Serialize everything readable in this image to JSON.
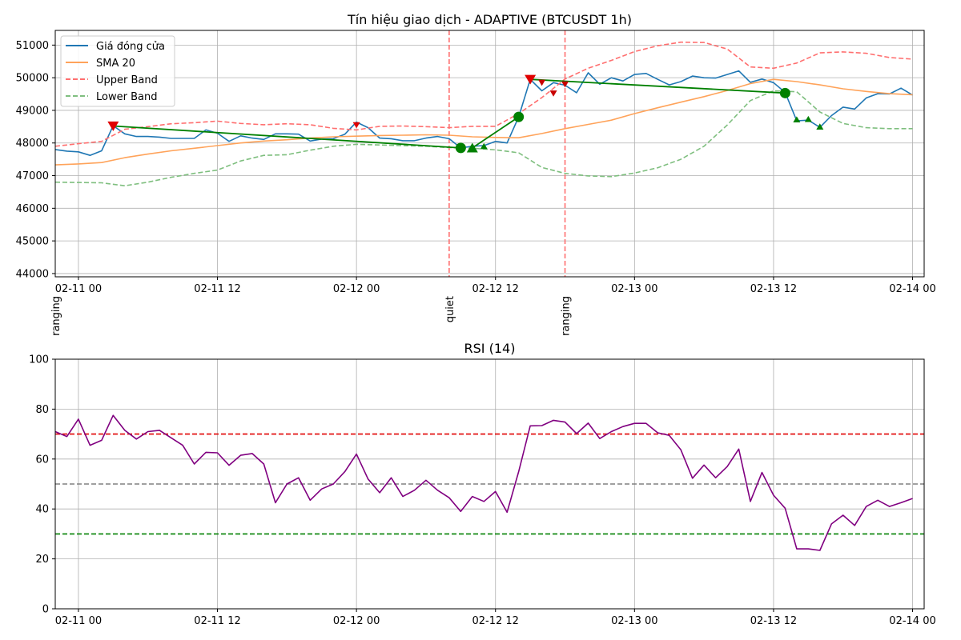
{
  "chart_data": [
    {
      "type": "line",
      "title": "Tín hiệu giao dịch - ADAPTIVE (BTCUSDT 1h)",
      "xlabel": "",
      "ylabel": "",
      "xlim": [
        -1,
        74
      ],
      "ylim": [
        43900,
        51450
      ],
      "grid": true,
      "legend": "top-left",
      "x_ticks": [
        {
          "x": 1,
          "label": "02-11 00"
        },
        {
          "x": 13,
          "label": "02-11 12"
        },
        {
          "x": 25,
          "label": "02-12 00"
        },
        {
          "x": 37,
          "label": "02-12 12"
        },
        {
          "x": 49,
          "label": "02-13 00"
        },
        {
          "x": 61,
          "label": "02-13 12"
        },
        {
          "x": 73,
          "label": "02-14 00"
        }
      ],
      "y_ticks": [
        44000,
        45000,
        46000,
        47000,
        48000,
        49000,
        50000,
        51000
      ],
      "series": [
        {
          "name": "Giá đóng cửa",
          "color": "#1f77b4",
          "style": "solid",
          "x": [
            -1,
            0,
            1,
            2,
            3,
            4,
            5,
            6,
            7,
            8,
            9,
            10,
            11,
            12,
            13,
            14,
            15,
            16,
            17,
            18,
            19,
            20,
            21,
            22,
            23,
            24,
            25,
            26,
            27,
            28,
            29,
            30,
            31,
            32,
            33,
            34,
            35,
            36,
            37,
            38,
            39,
            40,
            41,
            42,
            43,
            44,
            45,
            46,
            47,
            48,
            49,
            50,
            51,
            52,
            53,
            54,
            55,
            56,
            57,
            58,
            59,
            60,
            61,
            62,
            63,
            64,
            65,
            66,
            67,
            68,
            69,
            70,
            71,
            72,
            73
          ],
          "values": [
            47800,
            47750,
            47730,
            47620,
            47760,
            48530,
            48280,
            48200,
            48200,
            48180,
            48140,
            48140,
            48140,
            48400,
            48300,
            48050,
            48220,
            48150,
            48110,
            48280,
            48280,
            48270,
            48060,
            48120,
            48130,
            48270,
            48640,
            48470,
            48150,
            48130,
            48070,
            48070,
            48150,
            48200,
            48130,
            47850,
            47900,
            47920,
            48050,
            48000,
            48800,
            49950,
            49600,
            49850,
            49770,
            49540,
            50150,
            49800,
            50000,
            49900,
            50100,
            50130,
            49950,
            49780,
            49880,
            50050,
            50000,
            49990,
            50100,
            50210,
            49860,
            49960,
            49850,
            49550,
            48680,
            48700,
            48480,
            48840,
            49100,
            49040,
            49380,
            49510,
            49500,
            49680,
            49470
          ]
        },
        {
          "name": "SMA 20",
          "color": "#ffa35a",
          "style": "solid",
          "x": [
            -1,
            1,
            3,
            5,
            7,
            9,
            11,
            13,
            15,
            17,
            19,
            21,
            23,
            25,
            27,
            29,
            31,
            33,
            35,
            37,
            39,
            41,
            43,
            45,
            47,
            49,
            51,
            53,
            55,
            57,
            59,
            61,
            63,
            65,
            67,
            69,
            71,
            73
          ],
          "values": [
            47330,
            47360,
            47400,
            47550,
            47660,
            47760,
            47840,
            47920,
            48000,
            48060,
            48100,
            48150,
            48190,
            48210,
            48230,
            48240,
            48250,
            48240,
            48190,
            48170,
            48160,
            48290,
            48440,
            48570,
            48700,
            48900,
            49080,
            49250,
            49420,
            49610,
            49820,
            49950,
            49880,
            49780,
            49660,
            49580,
            49510,
            49480
          ]
        },
        {
          "name": "Upper Band",
          "color": "#ff6f6f",
          "style": "dashed",
          "x": [
            -1,
            1,
            3,
            5,
            7,
            9,
            11,
            13,
            15,
            17,
            19,
            21,
            23,
            25,
            27,
            29,
            31,
            33,
            35,
            37,
            39,
            41,
            43,
            45,
            47,
            49,
            51,
            53,
            55,
            57,
            59,
            61,
            63,
            65,
            67,
            69,
            71,
            73
          ],
          "values": [
            47900,
            47980,
            48050,
            48420,
            48500,
            48590,
            48620,
            48670,
            48600,
            48560,
            48590,
            48560,
            48450,
            48400,
            48510,
            48520,
            48500,
            48470,
            48510,
            48510,
            48900,
            49390,
            49960,
            50290,
            50530,
            50800,
            50980,
            51090,
            51080,
            50880,
            50330,
            50290,
            50450,
            50760,
            50790,
            50750,
            50620,
            50570
          ]
        },
        {
          "name": "Lower Band",
          "color": "#7fbf7f",
          "style": "dashed",
          "x": [
            -1,
            1,
            3,
            5,
            7,
            9,
            11,
            13,
            15,
            17,
            19,
            21,
            23,
            25,
            27,
            29,
            31,
            33,
            35,
            37,
            39,
            41,
            43,
            45,
            47,
            49,
            51,
            53,
            55,
            57,
            59,
            61,
            63,
            65,
            67,
            69,
            71,
            73
          ],
          "values": [
            46800,
            46790,
            46780,
            46690,
            46800,
            46950,
            47070,
            47170,
            47450,
            47620,
            47640,
            47780,
            47900,
            47960,
            47940,
            47920,
            47900,
            47860,
            47840,
            47790,
            47700,
            47250,
            47070,
            46990,
            46970,
            47080,
            47240,
            47500,
            47900,
            48550,
            49300,
            49600,
            49570,
            48950,
            48600,
            48470,
            48440,
            48440
          ]
        },
        {
          "name": "",
          "color": "#008000",
          "style": "solid",
          "x": [
            4,
            34
          ],
          "values": [
            48520,
            47850
          ]
        },
        {
          "name": "",
          "color": "#008000",
          "style": "solid",
          "x": [
            35,
            39
          ],
          "values": [
            47850,
            48800
          ]
        },
        {
          "name": "",
          "color": "#008000",
          "style": "solid",
          "x": [
            40,
            62
          ],
          "values": [
            49950,
            49530
          ]
        }
      ],
      "markers": [
        {
          "x": 4,
          "y": 48520,
          "shape": "triangle-down",
          "color": "#e00000",
          "size": "large"
        },
        {
          "x": 25,
          "y": 48550,
          "shape": "triangle-down",
          "color": "#e00000",
          "size": "small"
        },
        {
          "x": 40,
          "y": 49950,
          "shape": "triangle-down",
          "color": "#e00000",
          "size": "large"
        },
        {
          "x": 41,
          "y": 49850,
          "shape": "triangle-down",
          "color": "#c80000",
          "size": "small"
        },
        {
          "x": 42,
          "y": 49520,
          "shape": "triangle-down",
          "color": "#c80000",
          "size": "small"
        },
        {
          "x": 43,
          "y": 49800,
          "shape": "triangle-down",
          "color": "#c80000",
          "size": "small"
        },
        {
          "x": 34,
          "y": 47850,
          "shape": "circle",
          "color": "#008000",
          "size": "large"
        },
        {
          "x": 35,
          "y": 47850,
          "shape": "triangle-up",
          "color": "#008000",
          "size": "large"
        },
        {
          "x": 36,
          "y": 47900,
          "shape": "triangle-up",
          "color": "#008000",
          "size": "small"
        },
        {
          "x": 39,
          "y": 48800,
          "shape": "circle",
          "color": "#008000",
          "size": "large"
        },
        {
          "x": 62,
          "y": 49530,
          "shape": "circle",
          "color": "#008000",
          "size": "large"
        },
        {
          "x": 63,
          "y": 48720,
          "shape": "triangle-up",
          "color": "#008000",
          "size": "small"
        },
        {
          "x": 64,
          "y": 48730,
          "shape": "triangle-up",
          "color": "#008000",
          "size": "small"
        },
        {
          "x": 65,
          "y": 48500,
          "shape": "triangle-up",
          "color": "#008000",
          "size": "small"
        }
      ],
      "regimes": [
        {
          "x": -1,
          "label": "ranging",
          "line": false
        },
        {
          "x": 33,
          "label": "quiet",
          "line": true
        },
        {
          "x": 43,
          "label": "ranging",
          "line": true
        }
      ]
    },
    {
      "type": "line",
      "title": "RSI (14)",
      "xlabel": "",
      "ylabel": "",
      "xlim": [
        -1,
        74
      ],
      "ylim": [
        0,
        100
      ],
      "grid": true,
      "x_ticks": [
        {
          "x": 1,
          "label": "02-11 00"
        },
        {
          "x": 13,
          "label": "02-11 12"
        },
        {
          "x": 25,
          "label": "02-12 00"
        },
        {
          "x": 37,
          "label": "02-12 12"
        },
        {
          "x": 49,
          "label": "02-13 00"
        },
        {
          "x": 61,
          "label": "02-13 12"
        },
        {
          "x": 73,
          "label": "02-14 00"
        }
      ],
      "y_ticks": [
        0,
        20,
        40,
        60,
        80,
        100
      ],
      "reference_lines": [
        {
          "y": 70,
          "color": "#e00000"
        },
        {
          "y": 50,
          "color": "#808080"
        },
        {
          "y": 30,
          "color": "#008000"
        }
      ],
      "series": [
        {
          "name": "",
          "color": "#800080",
          "style": "solid",
          "x": [
            -1,
            0,
            1,
            2,
            3,
            4,
            5,
            6,
            7,
            8,
            9,
            10,
            11,
            12,
            13,
            14,
            15,
            16,
            17,
            18,
            19,
            20,
            21,
            22,
            23,
            24,
            25,
            26,
            27,
            28,
            29,
            30,
            31,
            32,
            33,
            34,
            35,
            36,
            37,
            38,
            39,
            40,
            41,
            42,
            43,
            44,
            45,
            46,
            47,
            48,
            49,
            50,
            51,
            52,
            53,
            54,
            55,
            56,
            57,
            58,
            59,
            60,
            61,
            62,
            63,
            64,
            65,
            66,
            67,
            68,
            69,
            70,
            71,
            72,
            73
          ],
          "values": [
            71,
            69,
            76,
            65.5,
            67.5,
            77.5,
            71.5,
            68,
            71,
            71.5,
            68.5,
            65.5,
            58,
            62.7,
            62.5,
            57.5,
            61.5,
            62.2,
            58,
            42.5,
            50,
            52.5,
            43.5,
            48,
            50,
            55,
            62,
            52,
            46.5,
            52.5,
            45,
            47.5,
            51.5,
            47.5,
            44.5,
            39,
            45,
            43,
            47,
            38.7,
            55,
            73.3,
            73.4,
            75.5,
            74.8,
            70.2,
            74.4,
            68.2,
            71,
            73,
            74.3,
            74.3,
            70.5,
            69.5,
            63.7,
            52.3,
            57.6,
            52.5,
            57,
            64,
            43,
            54.6,
            45.5,
            40.3,
            24,
            24,
            23.4,
            34,
            37.5,
            33.4,
            41,
            43.5,
            41,
            42.5,
            44.2
          ]
        }
      ]
    }
  ]
}
